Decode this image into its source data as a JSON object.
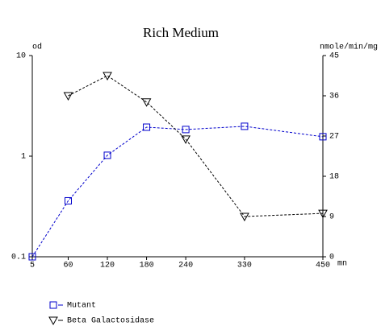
{
  "chart_data": {
    "type": "line",
    "title": "Rich Medium",
    "y_label": "od",
    "y2_label": "nmole/min/mg",
    "x_label": "mn",
    "x": [
      5,
      60,
      120,
      180,
      240,
      330,
      450
    ],
    "xlim": [
      5,
      450
    ],
    "xticks": [
      5,
      60,
      120,
      180,
      240,
      330,
      450
    ],
    "ylim": [
      0.1,
      10
    ],
    "yticks": [
      0.1,
      1,
      10
    ],
    "ylog": true,
    "y2lim": [
      0,
      45
    ],
    "y2ticks": [
      0,
      9,
      18,
      27,
      36,
      45
    ],
    "legend": "bottom-left",
    "series": [
      {
        "name": "Mutant",
        "color": "#0000cc",
        "marker": "square",
        "values": [
          0.1,
          0.36,
          1.02,
          1.94,
          1.84,
          1.98,
          1.56
        ]
      },
      {
        "name": "Beta Galactosidase",
        "color": "#000000",
        "marker": "triangle",
        "axis": "y2",
        "values": [
          null,
          36,
          40.5,
          34.6,
          26.3,
          9,
          9.7
        ]
      }
    ]
  }
}
